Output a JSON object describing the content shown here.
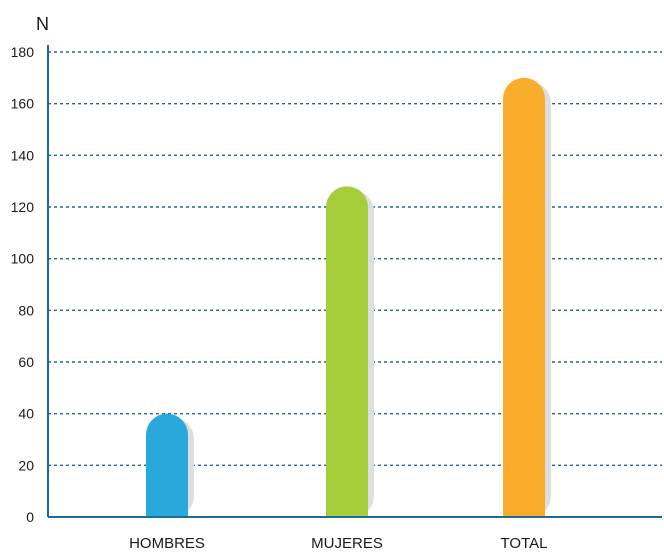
{
  "chart_data": {
    "type": "bar",
    "ylabel": "N",
    "categories": [
      "HOMBRES",
      "MUJERES",
      "TOTAL"
    ],
    "values": [
      40,
      128,
      170
    ],
    "ylim": [
      0,
      180
    ],
    "yticks": [
      0,
      20,
      40,
      60,
      80,
      100,
      120,
      140,
      160,
      180
    ],
    "grid": true,
    "colors": {
      "HOMBRES": "#29a8dc",
      "MUJERES": "#a6cd3a",
      "TOTAL": "#f9ab2c",
      "axis": "#1f6a91",
      "grid": "#1f6a91",
      "shadow": "#dedede"
    }
  }
}
